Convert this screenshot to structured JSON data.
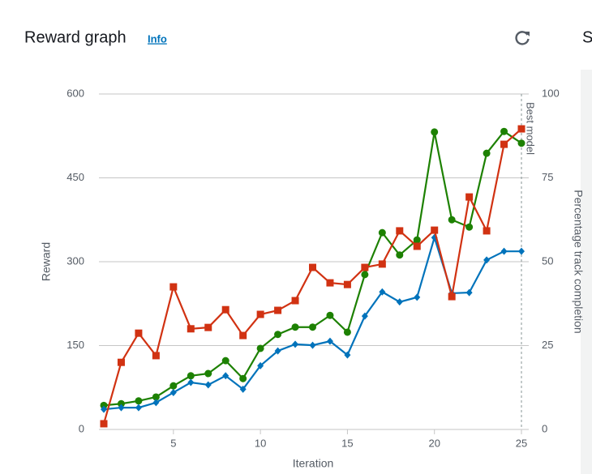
{
  "header": {
    "title": "Reward graph",
    "info": "Info",
    "next_panel_title": "S"
  },
  "chart_data": {
    "type": "line",
    "xlabel": "Iteration",
    "ylabel": "Reward",
    "y2label": "Percentage track completion",
    "x": [
      1,
      2,
      3,
      4,
      5,
      6,
      7,
      8,
      9,
      10,
      11,
      12,
      13,
      14,
      15,
      16,
      17,
      18,
      19,
      20,
      21,
      22,
      23,
      24,
      25
    ],
    "xlim": [
      1,
      25
    ],
    "xticks": [
      5,
      10,
      15,
      20,
      25
    ],
    "ylim": [
      0,
      600
    ],
    "yticks": [
      0,
      150,
      300,
      450,
      600
    ],
    "y2lim": [
      0,
      100
    ],
    "y2ticks": [
      0,
      25,
      50,
      75,
      100
    ],
    "grid": true,
    "annotation": {
      "text": "Best model",
      "x": 25
    },
    "series": [
      {
        "color": "#1d8102",
        "marker": "circle",
        "axis": "y",
        "values": [
          43,
          46,
          51,
          58,
          78,
          96,
          100,
          123,
          91,
          145,
          170,
          183,
          183,
          204,
          174,
          277,
          352,
          312,
          339,
          532,
          375,
          362,
          494,
          533,
          512
        ]
      },
      {
        "color": "#0073bb",
        "marker": "diamond",
        "axis": "y2",
        "values": [
          6,
          6.5,
          6.5,
          8,
          11,
          14,
          13.3,
          16,
          12,
          19,
          23.4,
          25.4,
          25.1,
          26.3,
          22.2,
          33.8,
          41,
          38,
          39.4,
          57.2,
          40.6,
          40.8,
          50.5,
          53.1,
          53.1
        ]
      },
      {
        "color": "#d13212",
        "marker": "square",
        "axis": "y2",
        "values": [
          1.7,
          20,
          28.7,
          22,
          42.5,
          30,
          30.4,
          35.7,
          28,
          34.3,
          35.5,
          38.4,
          48.3,
          43.7,
          43.2,
          48.3,
          49.3,
          59.2,
          54.6,
          59.4,
          39.6,
          69.3,
          59.2,
          85,
          89.6
        ]
      }
    ]
  }
}
